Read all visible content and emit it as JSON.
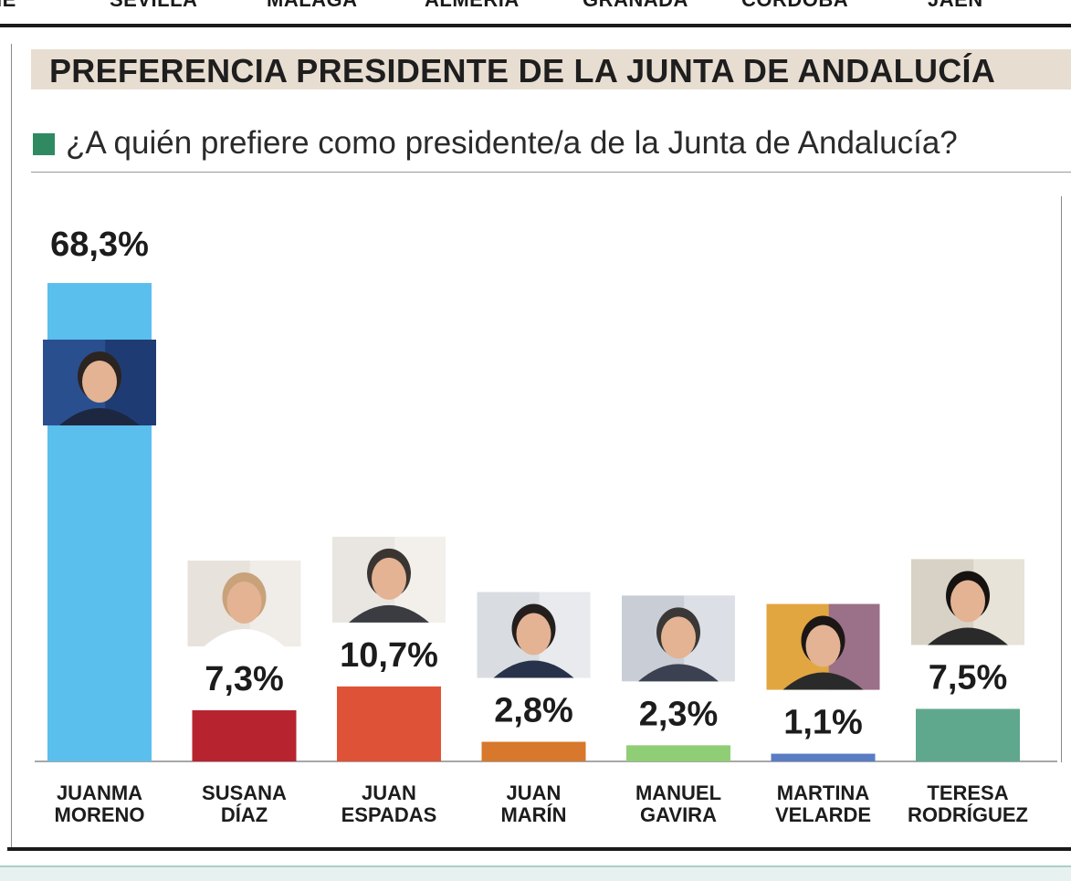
{
  "top_nav": [
    "IE",
    "SEVILLA",
    "MÁLAGA",
    "ALMERÍA",
    "GRANADA",
    "CÓRDOBA",
    "JAÉN"
  ],
  "header": {
    "title": "PREFERENCIA PRESIDENTE DE LA JUNTA DE ANDALUCÍA",
    "question": "¿A quién prefiere como presidente/a de la Junta de Andalucía?",
    "band_color": "#e8ddd1",
    "marker_color": "#2f8a62"
  },
  "chart_data": {
    "type": "bar",
    "title": "PREFERENCIA PRESIDENTE DE LA JUNTA DE ANDALUCÍA",
    "subtitle": "¿A quién prefiere como presidente/a de la Junta de Andalucía?",
    "xlabel": "",
    "ylabel": "",
    "ylim": [
      0,
      68.3
    ],
    "grid": false,
    "categories": [
      [
        "JUANMA",
        "MORENO"
      ],
      [
        "SUSANA",
        "DÍAZ"
      ],
      [
        "JUAN",
        "ESPADAS"
      ],
      [
        "JUAN",
        "MARÍN"
      ],
      [
        "MANUEL",
        "GAVIRA"
      ],
      [
        "MARTINA",
        "VELARDE"
      ],
      [
        "TERESA",
        "RODRÍGUEZ"
      ]
    ],
    "values": [
      68.3,
      7.3,
      10.7,
      2.8,
      2.3,
      1.1,
      7.5
    ],
    "value_labels": [
      "68,3%",
      "7,3%",
      "10,7%",
      "2,8%",
      "2,3%",
      "1,1%",
      "7,5%"
    ],
    "colors": [
      "#5bbfee",
      "#b7242f",
      "#de5337",
      "#d7782c",
      "#8fce74",
      "#5a7cc4",
      "#5fa88e"
    ],
    "photo_icons": [
      "juanma-moreno-portrait",
      "susana-diaz-portrait",
      "juan-espadas-portrait",
      "juan-marin-portrait",
      "manuel-gavira-portrait",
      "martina-velarde-portrait",
      "teresa-rodriguez-portrait"
    ]
  }
}
